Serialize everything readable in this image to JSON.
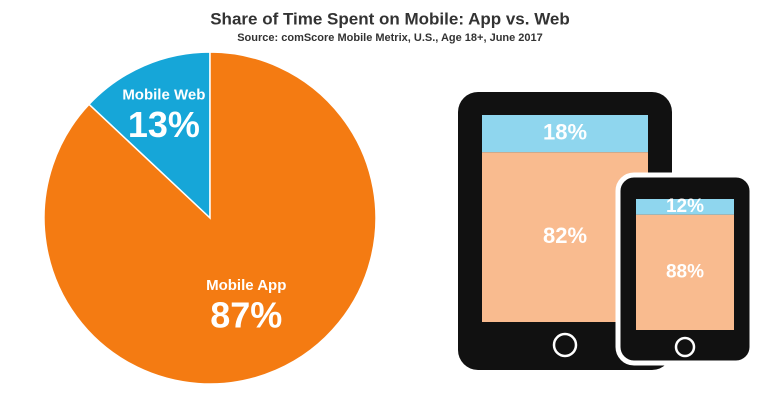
{
  "chart_data": [
    {
      "type": "pie",
      "title": "Share of Time Spent on Mobile: App vs. Web",
      "subtitle": "Source: comScore Mobile Metrix, U.S., Age 18+, June 2017",
      "categories": [
        "Mobile Web",
        "Mobile App"
      ],
      "values": [
        13,
        87
      ],
      "value_labels": [
        "13%",
        "87%"
      ],
      "colors": [
        "#16a6d8",
        "#f47b12"
      ]
    },
    {
      "type": "device",
      "values": [
        18,
        82
      ],
      "value_labels": [
        "18%",
        "82%"
      ],
      "colors": [
        "#8fd6ee",
        "#f9bb8f"
      ]
    },
    {
      "type": "device",
      "values": [
        12,
        88
      ],
      "value_labels": [
        "12%",
        "88%"
      ],
      "colors": [
        "#8fd6ee",
        "#f9bb8f"
      ]
    }
  ]
}
